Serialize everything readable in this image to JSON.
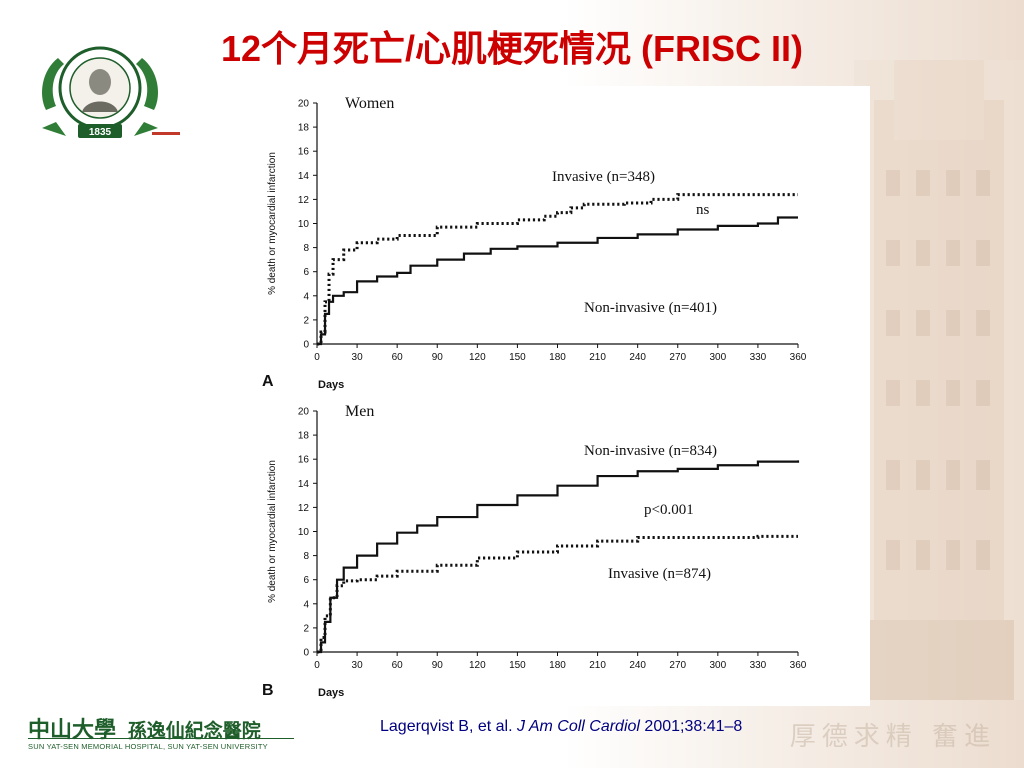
{
  "title": "12个月死亡/心肌梗死情况  (FRISC II)",
  "logo": {
    "year": "1835"
  },
  "footer": {
    "institution_cn": "中山大學",
    "hospital_cn": "孫逸仙紀念醫院",
    "institution_en": "SUN YAT-SEN MEMORIAL HOSPITAL, SUN YAT-SEN UNIVERSITY"
  },
  "citation": {
    "prefix": "Lagerqvist B, et al. ",
    "journal": "J Am Coll Cardiol",
    "suffix": " 2001;38:41–8"
  },
  "watermark": "厚德求精 奮進",
  "colors": {
    "title": "#cc0000",
    "citation": "#000080",
    "plot": "#111111",
    "logo_green": "#1e5e2a"
  },
  "chart_data": [
    {
      "type": "line",
      "panel_letter": "A",
      "title": "Women",
      "xlabel": "Days",
      "ylabel": "% death or myocardial infarction",
      "xlim": [
        0,
        360
      ],
      "ylim": [
        0,
        20
      ],
      "x_ticks": [
        0,
        30,
        60,
        90,
        120,
        150,
        180,
        210,
        240,
        270,
        300,
        330,
        360
      ],
      "y_ticks": [
        0,
        2,
        4,
        6,
        8,
        10,
        12,
        14,
        16,
        18,
        20
      ],
      "series": [
        {
          "name": "Invasive (n=348)",
          "style": "dotted",
          "x": [
            0,
            3,
            6,
            9,
            12,
            20,
            30,
            45,
            60,
            90,
            120,
            150,
            170,
            180,
            190,
            200,
            230,
            250,
            270,
            360
          ],
          "y": [
            0,
            1.0,
            3.5,
            5.8,
            7.0,
            7.8,
            8.4,
            8.7,
            9.0,
            9.7,
            10.0,
            10.3,
            10.6,
            10.9,
            11.3,
            11.6,
            11.7,
            12.0,
            12.4,
            12.4
          ]
        },
        {
          "name": "Non-invasive (n=401)",
          "style": "solid",
          "x": [
            0,
            3,
            6,
            9,
            12,
            20,
            30,
            45,
            60,
            70,
            90,
            110,
            130,
            150,
            180,
            210,
            240,
            270,
            300,
            330,
            345,
            360
          ],
          "y": [
            0,
            0.8,
            2.5,
            3.5,
            4.0,
            4.3,
            5.2,
            5.6,
            5.9,
            6.5,
            7.0,
            7.5,
            7.9,
            8.1,
            8.4,
            8.8,
            9.1,
            9.5,
            9.8,
            10.0,
            10.5,
            10.5
          ]
        }
      ],
      "annotations": [
        "Invasive (n=348)",
        "ns",
        "Non-invasive (n=401)"
      ]
    },
    {
      "type": "line",
      "panel_letter": "B",
      "title": "Men",
      "xlabel": "Days",
      "ylabel": "% death or myocardial infarction",
      "xlim": [
        0,
        360
      ],
      "ylim": [
        0,
        20
      ],
      "x_ticks": [
        0,
        30,
        60,
        90,
        120,
        150,
        180,
        210,
        240,
        270,
        300,
        330,
        360
      ],
      "y_ticks": [
        0,
        2,
        4,
        6,
        8,
        10,
        12,
        14,
        16,
        18,
        20
      ],
      "series": [
        {
          "name": "Non-invasive (n=834)",
          "style": "solid",
          "x": [
            0,
            3,
            6,
            10,
            15,
            20,
            30,
            45,
            60,
            75,
            90,
            120,
            150,
            180,
            210,
            240,
            270,
            300,
            330,
            360
          ],
          "y": [
            0,
            0.8,
            2.5,
            4.5,
            6.0,
            7.0,
            8.0,
            9.0,
            9.9,
            10.5,
            11.2,
            12.2,
            13.0,
            13.8,
            14.6,
            15.0,
            15.2,
            15.5,
            15.8,
            15.9
          ]
        },
        {
          "name": "Invasive (n=874)",
          "style": "dotted",
          "x": [
            0,
            3,
            6,
            10,
            15,
            20,
            30,
            45,
            60,
            90,
            120,
            150,
            180,
            210,
            240,
            270,
            300,
            330,
            360
          ],
          "y": [
            0,
            1.2,
            3.0,
            4.5,
            5.5,
            5.9,
            6.0,
            6.3,
            6.7,
            7.2,
            7.8,
            8.3,
            8.8,
            9.2,
            9.5,
            9.5,
            9.5,
            9.6,
            9.6
          ]
        }
      ],
      "annotations": [
        "Non-invasive (n=834)",
        "p<0.001",
        "Invasive (n=874)"
      ]
    }
  ]
}
